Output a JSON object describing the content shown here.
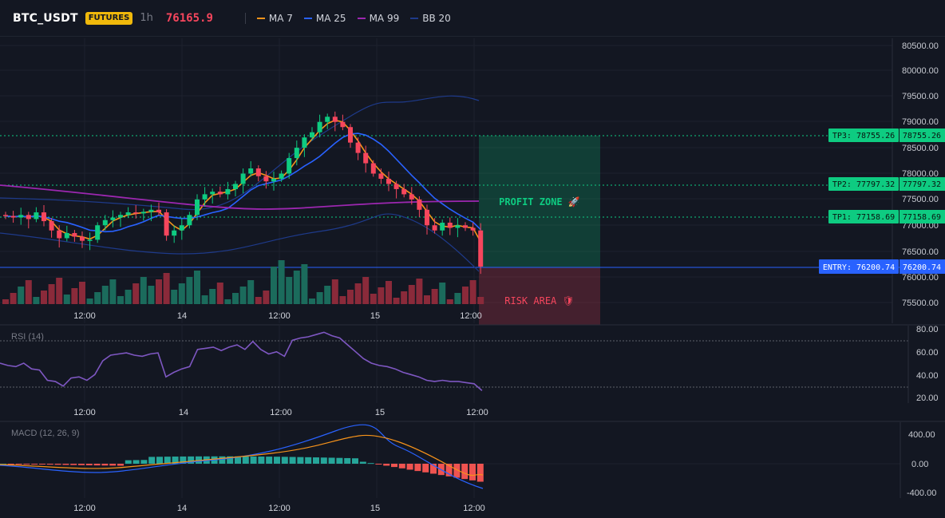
{
  "header": {
    "symbol": "BTC_USDT",
    "badge": "FUTURES",
    "timeframe": "1h",
    "last_price": "76165.9",
    "indicators": [
      {
        "label": "MA 7",
        "color": "#f7931a"
      },
      {
        "label": "MA 25",
        "color": "#2962ff"
      },
      {
        "label": "MA 99",
        "color": "#9c27b0"
      },
      {
        "label": "BB 20",
        "color": "#1e3a8a"
      }
    ]
  },
  "colors": {
    "up": "#0ecb81",
    "down": "#f6465d",
    "vol_up": "#1b6b5c",
    "vol_down": "#8a2a3a",
    "tp_line": "#0ecb81",
    "entry": "#2962ff",
    "rsi": "#7e57c2",
    "macd_line": "#2962ff",
    "signal_line": "#f7931a",
    "hist_up": "#26a69a",
    "hist_down": "#ef5350"
  },
  "price_axis": {
    "labels": [
      "80500.00",
      "80000.00",
      "79500.00",
      "79000.00",
      "78500.00",
      "78000.00",
      "77500.00",
      "77000.00",
      "76500.00",
      "76000.00",
      "75500.00"
    ]
  },
  "levels": {
    "tp3": {
      "tag": "TP3: 78755.26",
      "value": "78755.26"
    },
    "tp2": {
      "tag": "TP2: 77797.32",
      "value": "77797.32"
    },
    "tp1": {
      "tag": "TP1: 77158.69",
      "value": "77158.69"
    },
    "entry": {
      "tag": "ENTRY: 76200.74",
      "value": "76200.74"
    }
  },
  "zones": {
    "profit_label": "PROFIT ZONE 🚀",
    "risk_label": "RISK AREA 🛡"
  },
  "time_axis": [
    "12:00",
    "14",
    "12:00",
    "15",
    "12:00"
  ],
  "rsi": {
    "title": "RSI (14)",
    "labels": [
      "80.00",
      "60.00",
      "40.00",
      "20.00"
    ]
  },
  "macd": {
    "title": "MACD (12, 26, 9)",
    "labels": [
      "400.00",
      "0.00",
      "-400.00"
    ]
  }
}
